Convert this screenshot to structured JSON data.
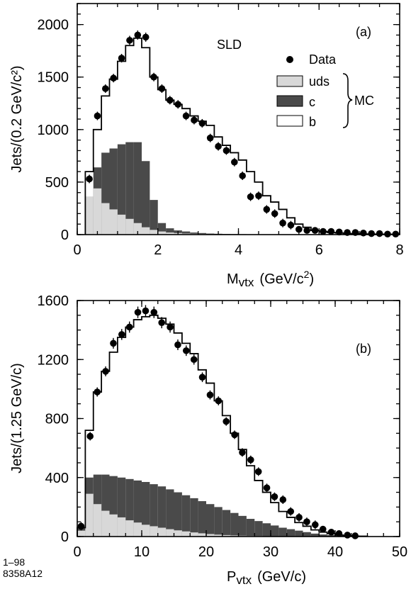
{
  "footer": {
    "line1": "1–98",
    "line2": "8358A12"
  },
  "chart_data": [
    {
      "type": "histogram",
      "panel_label": "(a)",
      "experiment_label": "SLD",
      "xlabel_main": "M",
      "xlabel_sub": "vtx",
      "xlabel_unit_pre": "(GeV/c",
      "xlabel_unit_sup": "2",
      "xlabel_unit_post": ")",
      "ylabel": "Jets/(0.2 GeV/c²)",
      "xlim": [
        0,
        8
      ],
      "ylim": [
        0,
        2200
      ],
      "xticks": [
        0,
        2,
        4,
        6,
        8
      ],
      "yticks": [
        0,
        500,
        1000,
        1500,
        2000
      ],
      "bin_edges": [
        0.2,
        0.4,
        0.6,
        0.8,
        1.0,
        1.2,
        1.4,
        1.6,
        1.8,
        2.0,
        2.2,
        2.4,
        2.6,
        2.8,
        3.0,
        3.2,
        3.4,
        3.6,
        3.8,
        4.0,
        4.2,
        4.4,
        4.6,
        4.8,
        5.0,
        5.2,
        5.4,
        5.6,
        5.8,
        6.0,
        6.2,
        6.4,
        6.6,
        6.8,
        7.0,
        7.2,
        7.4,
        7.6,
        7.8,
        8.0
      ],
      "mc_total": [
        600,
        1000,
        1320,
        1480,
        1650,
        1800,
        1870,
        1780,
        1500,
        1380,
        1280,
        1240,
        1200,
        1130,
        1080,
        1040,
        930,
        850,
        780,
        710,
        600,
        500,
        370,
        310,
        240,
        160,
        100,
        70,
        40,
        30,
        20,
        15,
        10,
        8,
        6,
        5,
        4,
        3,
        3
      ],
      "mc_uds_plus_c": [
        360,
        640,
        780,
        820,
        860,
        880,
        880,
        700,
        330,
        110,
        60,
        40,
        30,
        20,
        15,
        10,
        8,
        6,
        5,
        4,
        3,
        2,
        2,
        1,
        1,
        0,
        0,
        0,
        0,
        0,
        0,
        0,
        0,
        0,
        0,
        0,
        0,
        0,
        0
      ],
      "mc_uds": [
        360,
        440,
        300,
        240,
        190,
        150,
        110,
        70,
        45,
        30,
        20,
        15,
        10,
        8,
        6,
        4,
        3,
        2,
        2,
        1,
        1,
        1,
        0,
        0,
        0,
        0,
        0,
        0,
        0,
        0,
        0,
        0,
        0,
        0,
        0,
        0,
        0,
        0,
        0
      ],
      "data_x": [
        0.3,
        0.5,
        0.7,
        0.9,
        1.1,
        1.3,
        1.5,
        1.7,
        1.9,
        2.1,
        2.3,
        2.5,
        2.7,
        2.9,
        3.1,
        3.3,
        3.5,
        3.7,
        3.9,
        4.1,
        4.3,
        4.5,
        4.7,
        4.9,
        5.1,
        5.3,
        5.5,
        5.7,
        5.9,
        6.1,
        6.3,
        6.5,
        6.7,
        6.9,
        7.1,
        7.3,
        7.5,
        7.7,
        7.9
      ],
      "data_y": [
        530,
        1130,
        1390,
        1490,
        1680,
        1850,
        1900,
        1880,
        1500,
        1390,
        1280,
        1240,
        1130,
        1090,
        1060,
        920,
        840,
        800,
        690,
        560,
        360,
        370,
        240,
        200,
        110,
        90,
        50,
        40,
        40,
        30,
        30,
        25,
        20,
        20,
        15,
        10,
        10,
        5,
        5
      ],
      "legend": {
        "data_label": "Data",
        "uds_label": "uds",
        "c_label": "c",
        "b_label": "b",
        "group_label": "MC"
      },
      "colors": {
        "uds": "#d8d8d8",
        "c": "#4a4a4a",
        "b": "#ffffff"
      }
    },
    {
      "type": "histogram",
      "panel_label": "(b)",
      "xlabel_main": "P",
      "xlabel_sub": "vtx",
      "xlabel_unit_pre": "(GeV/c)",
      "ylabel": "Jets/(1.25 GeV/c)",
      "xlim": [
        0,
        50
      ],
      "ylim": [
        0,
        1600
      ],
      "xticks": [
        0,
        10,
        20,
        30,
        40,
        50
      ],
      "yticks": [
        0,
        400,
        800,
        1200,
        1600
      ],
      "bin_edges": [
        0,
        1.25,
        2.5,
        3.75,
        5,
        6.25,
        7.5,
        8.75,
        10,
        11.25,
        12.5,
        13.75,
        15,
        16.25,
        17.5,
        18.75,
        20,
        21.25,
        22.5,
        23.75,
        25,
        26.25,
        27.5,
        28.75,
        30,
        31.25,
        32.5,
        33.75,
        35,
        36.25,
        37.5,
        38.75,
        40,
        41.25,
        42.5,
        43.75,
        45
      ],
      "mc_total": [
        60,
        720,
        980,
        1120,
        1250,
        1350,
        1420,
        1470,
        1490,
        1500,
        1480,
        1440,
        1380,
        1310,
        1240,
        1130,
        1040,
        920,
        820,
        700,
        590,
        480,
        380,
        300,
        230,
        170,
        130,
        95,
        70,
        45,
        30,
        20,
        10,
        5,
        3,
        2
      ],
      "mc_uds_plus_c": [
        60,
        400,
        420,
        420,
        410,
        400,
        390,
        380,
        370,
        355,
        340,
        320,
        300,
        280,
        260,
        240,
        220,
        200,
        180,
        160,
        140,
        120,
        105,
        90,
        75,
        60,
        50,
        40,
        30,
        20,
        14,
        10,
        5,
        3,
        2,
        1
      ],
      "mc_uds": [
        40,
        290,
        220,
        175,
        150,
        130,
        110,
        95,
        80,
        70,
        60,
        50,
        42,
        35,
        28,
        22,
        17,
        13,
        10,
        8,
        6,
        5,
        4,
        3,
        2,
        2,
        1,
        1,
        0,
        0,
        0,
        0,
        0,
        0,
        0,
        0
      ],
      "data_x": [
        0.6,
        2.0,
        3.1,
        4.4,
        5.6,
        6.9,
        8.1,
        9.4,
        10.6,
        11.9,
        13.1,
        14.4,
        15.6,
        16.9,
        18.1,
        19.4,
        20.6,
        21.9,
        23.1,
        24.4,
        25.6,
        26.9,
        28.1,
        29.4,
        30.6,
        31.9,
        33.1,
        34.4,
        35.6,
        36.9,
        38.1,
        39.4,
        40.6,
        41.9,
        43.1
      ],
      "data_y": [
        70,
        680,
        980,
        1120,
        1310,
        1370,
        1420,
        1520,
        1530,
        1520,
        1450,
        1420,
        1300,
        1260,
        1200,
        1080,
        960,
        920,
        780,
        690,
        570,
        520,
        440,
        330,
        270,
        250,
        170,
        130,
        100,
        80,
        50,
        30,
        20,
        10,
        5
      ]
    }
  ]
}
